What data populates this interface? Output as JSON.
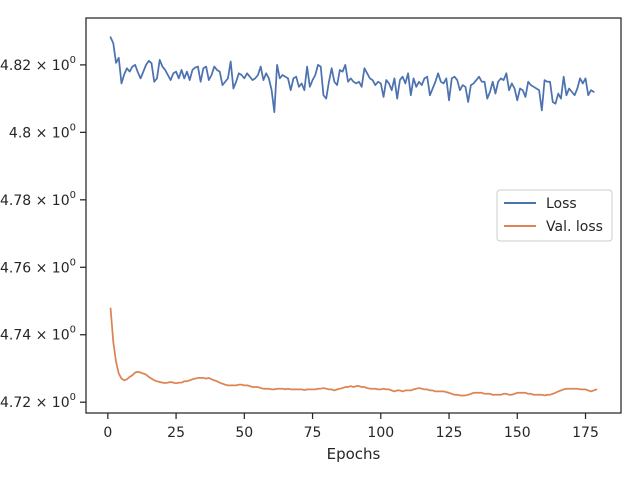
{
  "chart_data": {
    "type": "line",
    "title": "",
    "xlabel": "Epochs",
    "ylabel": "",
    "xlim": [
      -8,
      188
    ],
    "ylim": [
      4.7168,
      4.8339
    ],
    "x_ticks": [
      0,
      25,
      50,
      75,
      100,
      125,
      150,
      175
    ],
    "x_tick_labels": [
      "0",
      "25",
      "50",
      "75",
      "100",
      "125",
      "150",
      "175"
    ],
    "y_ticks": [
      4.72,
      4.74,
      4.76,
      4.78,
      4.8,
      4.82
    ],
    "y_tick_labels": [
      {
        "mantissa": "4.72",
        "base": "10",
        "exp": "0"
      },
      {
        "mantissa": "4.74",
        "base": "10",
        "exp": "0"
      },
      {
        "mantissa": "4.76",
        "base": "10",
        "exp": "0"
      },
      {
        "mantissa": "4.78",
        "base": "10",
        "exp": "0"
      },
      {
        "mantissa": "4.8",
        "base": "10",
        "exp": "0"
      },
      {
        "mantissa": "4.82",
        "base": "10",
        "exp": "0"
      }
    ],
    "scale": "log",
    "grid": false,
    "legend_position": "center-right",
    "series": [
      {
        "name": "Loss",
        "color": "#4c72b0",
        "x_start": 1,
        "values": [
          4.8282,
          4.8264,
          4.8206,
          4.8221,
          4.8145,
          4.8172,
          4.819,
          4.818,
          4.8195,
          4.82,
          4.8178,
          4.816,
          4.818,
          4.82,
          4.8212,
          4.8205,
          4.815,
          4.816,
          4.8215,
          4.8195,
          4.8185,
          4.817,
          4.8155,
          4.8175,
          4.818,
          4.816,
          4.8185,
          4.816,
          4.818,
          4.8155,
          4.8185,
          4.8192,
          4.8195,
          4.815,
          4.819,
          4.8195,
          4.8155,
          4.817,
          4.8195,
          4.8185,
          4.818,
          4.814,
          4.815,
          4.816,
          4.821,
          4.813,
          4.815,
          4.8175,
          4.817,
          4.816,
          4.8175,
          4.8165,
          4.8155,
          4.816,
          4.817,
          4.8195,
          4.8155,
          4.8175,
          4.816,
          4.8125,
          4.806,
          4.82,
          4.816,
          4.817,
          4.8165,
          4.816,
          4.8125,
          4.816,
          4.8165,
          4.8135,
          4.8145,
          4.8125,
          4.8195,
          4.8135,
          4.8155,
          4.817,
          4.82,
          4.8195,
          4.811,
          4.81,
          4.815,
          4.819,
          4.815,
          4.814,
          4.8185,
          4.818,
          4.82,
          4.815,
          4.816,
          4.815,
          4.8145,
          4.815,
          4.8135,
          4.819,
          4.8175,
          4.816,
          4.8155,
          4.814,
          4.815,
          4.8145,
          4.8105,
          4.8155,
          4.8145,
          4.8125,
          4.816,
          4.81,
          4.8155,
          4.8165,
          4.8145,
          4.8175,
          4.811,
          4.816,
          4.8135,
          4.815,
          4.814,
          4.816,
          4.8165,
          4.811,
          4.813,
          4.815,
          4.8175,
          4.815,
          4.8145,
          4.816,
          4.8095,
          4.816,
          4.8165,
          4.8155,
          4.8125,
          4.814,
          4.8135,
          4.809,
          4.814,
          4.8145,
          4.8155,
          4.8165,
          4.815,
          4.815,
          4.81,
          4.812,
          4.815,
          4.8115,
          4.815,
          4.816,
          4.8155,
          4.8175,
          4.8125,
          4.8145,
          4.813,
          4.8095,
          4.813,
          4.8125,
          4.8105,
          4.815,
          4.814,
          4.8135,
          4.813,
          4.8125,
          4.8065,
          4.8155,
          4.815,
          4.815,
          4.809,
          4.8085,
          4.8115,
          4.81,
          4.8165,
          4.811,
          4.813,
          4.812,
          4.811,
          4.813,
          4.816,
          4.8145,
          4.816,
          4.811,
          4.8125,
          4.812
        ]
      },
      {
        "name": "Val. loss",
        "color": "#dd8452",
        "x_start": 1,
        "values": [
          4.7478,
          4.7378,
          4.732,
          4.7285,
          4.727,
          4.7265,
          4.7268,
          4.7275,
          4.728,
          4.7288,
          4.729,
          4.7288,
          4.7285,
          4.7282,
          4.7275,
          4.727,
          4.7265,
          4.7262,
          4.726,
          4.7258,
          4.7257,
          4.7258,
          4.726,
          4.7258,
          4.7256,
          4.7258,
          4.7258,
          4.7262,
          4.7262,
          4.7265,
          4.7268,
          4.727,
          4.7272,
          4.7272,
          4.7272,
          4.727,
          4.7272,
          4.7268,
          4.7265,
          4.7262,
          4.7258,
          4.7255,
          4.7252,
          4.725,
          4.725,
          4.725,
          4.725,
          4.7252,
          4.7252,
          4.725,
          4.725,
          4.7248,
          4.7245,
          4.7245,
          4.7245,
          4.7242,
          4.724,
          4.724,
          4.724,
          4.7238,
          4.7238,
          4.724,
          4.724,
          4.724,
          4.7238,
          4.724,
          4.7238,
          4.7238,
          4.7238,
          4.7238,
          4.7238,
          4.7236,
          4.7238,
          4.7238,
          4.7238,
          4.7238,
          4.724,
          4.724,
          4.7242,
          4.724,
          4.7238,
          4.7238,
          4.7235,
          4.7238,
          4.724,
          4.7242,
          4.7245,
          4.7245,
          4.7248,
          4.7245,
          4.7248,
          4.7248,
          4.7245,
          4.7245,
          4.7242,
          4.724,
          4.724,
          4.724,
          4.7238,
          4.7238,
          4.724,
          4.7238,
          4.7238,
          4.7235,
          4.7232,
          4.7235,
          4.7235,
          4.7232,
          4.7235,
          4.7235,
          4.7235,
          4.7238,
          4.724,
          4.7242,
          4.724,
          4.7238,
          4.7238,
          4.7235,
          4.7235,
          4.7232,
          4.7232,
          4.7232,
          4.7232,
          4.723,
          4.7228,
          4.7225,
          4.7222,
          4.7222,
          4.722,
          4.722,
          4.722,
          4.7222,
          4.7225,
          4.7228,
          4.7228,
          4.7228,
          4.7228,
          4.7225,
          4.7225,
          4.7225,
          4.7222,
          4.7222,
          4.7222,
          4.7222,
          4.7225,
          4.7225,
          4.7222,
          4.7222,
          4.7225,
          4.7228,
          4.7228,
          4.7228,
          4.7228,
          4.7225,
          4.7225,
          4.7222,
          4.7222,
          4.7222,
          4.7222,
          4.722,
          4.7222,
          4.7222,
          4.7225,
          4.7228,
          4.7232,
          4.7235,
          4.7238,
          4.724,
          4.724,
          4.724,
          4.724,
          4.724,
          4.7238,
          4.7238,
          4.7238,
          4.7235,
          4.7232,
          4.7235,
          4.7238
        ]
      }
    ]
  }
}
